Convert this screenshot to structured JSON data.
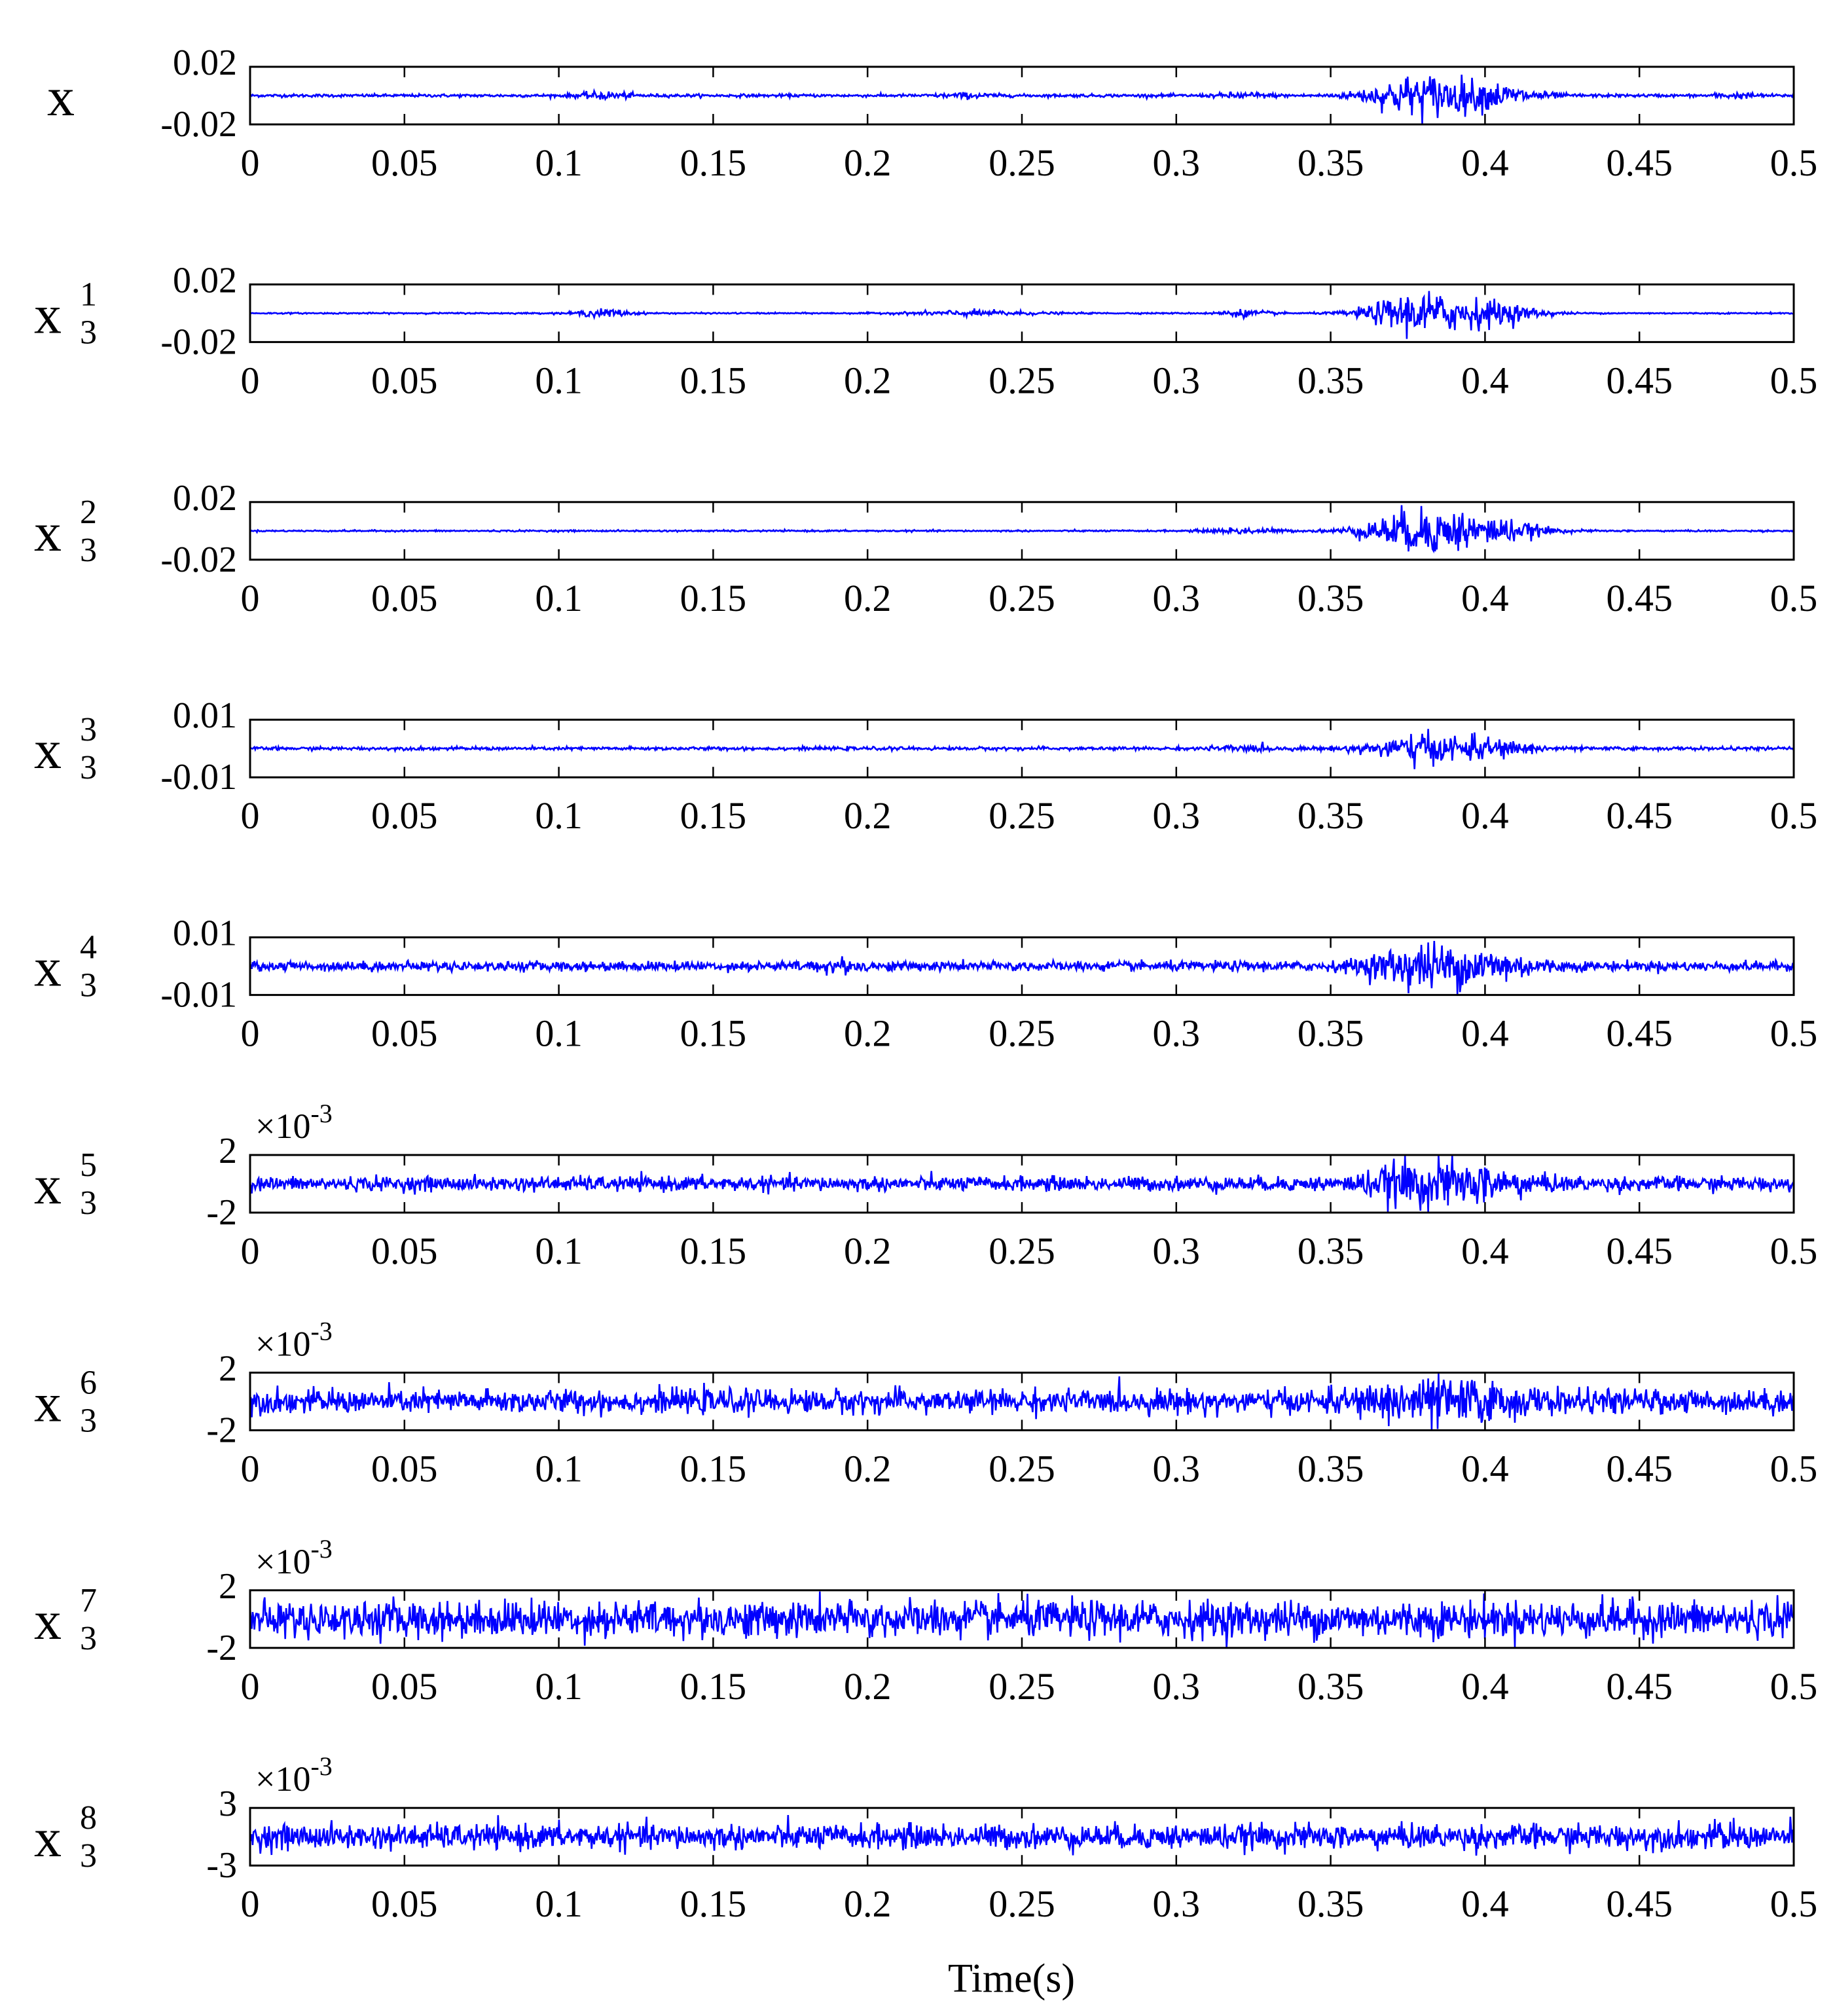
{
  "chart_data": {
    "type": "line",
    "layout": "stacked-subplots",
    "xlabel": "Time(s)",
    "x_range": [
      0,
      0.5
    ],
    "x_ticks": [
      "0",
      "0.05",
      "0.1",
      "0.15",
      "0.2",
      "0.25",
      "0.3",
      "0.35",
      "0.4",
      "0.45",
      "0.5"
    ],
    "grid": false,
    "legend": "none",
    "line_color": "#0000ff",
    "axes_color": "#000000",
    "subplots": [
      {
        "label_base": "x",
        "label_sup": "",
        "label_sub": "",
        "exponent": "",
        "ylim": [
          -0.02,
          0.02
        ],
        "ytick_labels": [
          "0.02",
          "-0.02"
        ],
        "noise_amplitude": 0.0011,
        "events": [
          {
            "t": 0.115,
            "amplitude": 0.0024,
            "width": 0.006
          },
          {
            "t": 0.232,
            "amplitude": 0.0014,
            "width": 0.006
          },
          {
            "t": 0.322,
            "amplitude": 0.0018,
            "width": 0.006
          },
          {
            "t": 0.378,
            "amplitude": 0.0145,
            "width": 0.011
          },
          {
            "t": 0.401,
            "amplitude": 0.0085,
            "width": 0.011
          },
          {
            "t": 0.481,
            "amplitude": 0.0015,
            "width": 0.005
          }
        ]
      },
      {
        "label_base": "x",
        "label_sup": "1",
        "label_sub": "3",
        "exponent": "",
        "ylim": [
          -0.02,
          0.02
        ],
        "ytick_labels": [
          "0.02",
          "-0.02"
        ],
        "noise_amplitude": 0.0005,
        "events": [
          {
            "t": 0.115,
            "amplitude": 0.003,
            "width": 0.006
          },
          {
            "t": 0.235,
            "amplitude": 0.002,
            "width": 0.014
          },
          {
            "t": 0.322,
            "amplitude": 0.0025,
            "width": 0.006
          },
          {
            "t": 0.378,
            "amplitude": 0.015,
            "width": 0.011
          },
          {
            "t": 0.401,
            "amplitude": 0.0085,
            "width": 0.011
          }
        ]
      },
      {
        "label_base": "x",
        "label_sup": "2",
        "label_sub": "3",
        "exponent": "",
        "ylim": [
          -0.02,
          0.02
        ],
        "ytick_labels": [
          "0.02",
          "-0.02"
        ],
        "noise_amplitude": 0.0006,
        "events": [
          {
            "t": 0.322,
            "amplitude": 0.0022,
            "width": 0.008
          },
          {
            "t": 0.378,
            "amplitude": 0.0155,
            "width": 0.012
          },
          {
            "t": 0.401,
            "amplitude": 0.009,
            "width": 0.012
          }
        ]
      },
      {
        "label_base": "x",
        "label_sup": "3",
        "label_sub": "3",
        "exponent": "",
        "ylim": [
          -0.01,
          0.01
        ],
        "ytick_labels": [
          "0.01",
          "-0.01"
        ],
        "noise_amplitude": 0.0006,
        "events": [
          {
            "t": 0.322,
            "amplitude": 0.0008,
            "width": 0.008
          },
          {
            "t": 0.378,
            "amplitude": 0.0048,
            "width": 0.011
          },
          {
            "t": 0.401,
            "amplitude": 0.003,
            "width": 0.011
          }
        ]
      },
      {
        "label_base": "x",
        "label_sup": "4",
        "label_sub": "3",
        "exponent": "",
        "ylim": [
          -0.01,
          0.01
        ],
        "ytick_labels": [
          "0.01",
          "-0.01"
        ],
        "noise_amplitude": 0.0018,
        "events": [
          {
            "t": 0.19,
            "amplitude": 0.0015,
            "width": 0.005
          },
          {
            "t": 0.378,
            "amplitude": 0.0068,
            "width": 0.011
          },
          {
            "t": 0.401,
            "amplitude": 0.005,
            "width": 0.011
          }
        ]
      },
      {
        "label_base": "x",
        "label_sup": "5",
        "label_sub": "3",
        "exponent": "-3",
        "ylim": [
          -2,
          2
        ],
        "ytick_labels": [
          "2",
          "-2"
        ],
        "noise_amplitude": 0.55,
        "events": [
          {
            "t": 0.378,
            "amplitude": 1.3,
            "width": 0.011
          },
          {
            "t": 0.401,
            "amplitude": 0.8,
            "width": 0.011
          }
        ]
      },
      {
        "label_base": "x",
        "label_sup": "6",
        "label_sub": "3",
        "exponent": "-3",
        "ylim": [
          -2,
          2
        ],
        "ytick_labels": [
          "2",
          "-2"
        ],
        "noise_amplitude": 0.9,
        "events": [
          {
            "t": 0.378,
            "amplitude": 1.1,
            "width": 0.011
          },
          {
            "t": 0.401,
            "amplitude": 0.6,
            "width": 0.011
          }
        ]
      },
      {
        "label_base": "x",
        "label_sup": "7",
        "label_sub": "3",
        "exponent": "-3",
        "ylim": [
          -2,
          2
        ],
        "ytick_labels": [
          "2",
          "-2"
        ],
        "noise_amplitude": 1.4,
        "events": []
      },
      {
        "label_base": "x",
        "label_sup": "8",
        "label_sub": "3",
        "exponent": "-3",
        "ylim": [
          -3,
          3
        ],
        "ytick_labels": [
          "3",
          "-3"
        ],
        "noise_amplitude": 1.4,
        "events": [
          {
            "t": 0.478,
            "amplitude": 0.8,
            "width": 0.002
          }
        ]
      }
    ]
  }
}
